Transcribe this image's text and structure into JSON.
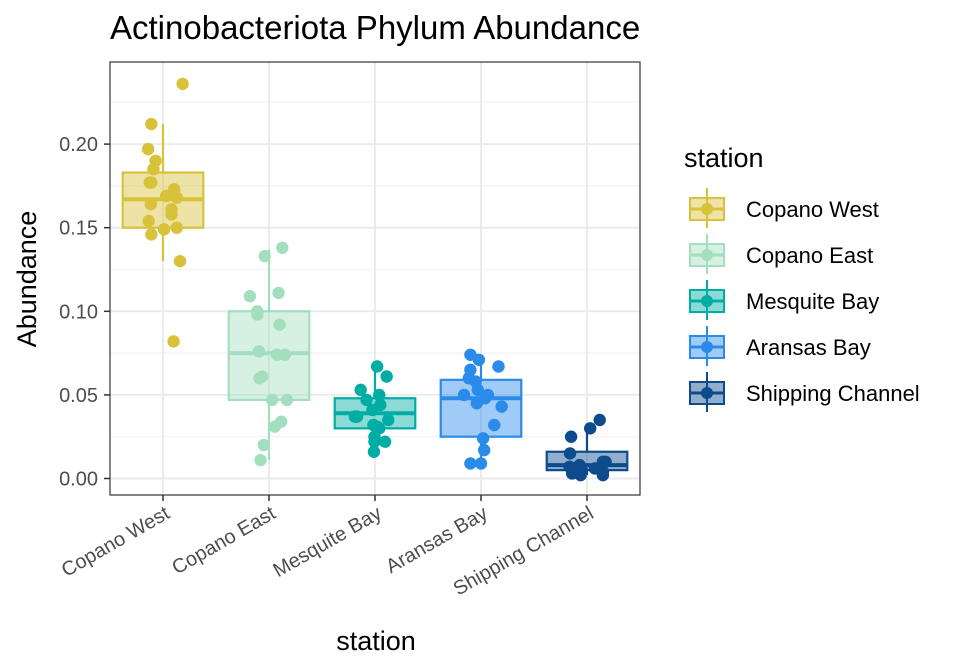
{
  "chart_data": {
    "type": "boxplot",
    "title": "Actinobacteriota Phylum Abundance",
    "xlabel": "station",
    "ylabel": "Abundance",
    "ylim": [
      -0.01,
      0.25
    ],
    "yticks": [
      0.0,
      0.05,
      0.1,
      0.15,
      0.2
    ],
    "ytick_labels": [
      "0.00",
      "0.05",
      "0.10",
      "0.15",
      "0.20"
    ],
    "grid": true,
    "legend": {
      "title": "station",
      "position": "right"
    },
    "categories": [
      "Copano West",
      "Copano East",
      "Mesquite Bay",
      "Aransas Bay",
      "Shipping Channel"
    ],
    "series": [
      {
        "name": "Copano West",
        "color": "#D8C23A",
        "box": {
          "whisker_low": 0.13,
          "q1": 0.15,
          "median": 0.167,
          "q3": 0.183,
          "whisker_high": 0.212
        },
        "points": [
          {
            "x": -0.22,
            "y": 0.212
          },
          {
            "x": 0.37,
            "y": 0.236
          },
          {
            "x": -0.28,
            "y": 0.197
          },
          {
            "x": -0.14,
            "y": 0.19
          },
          {
            "x": -0.18,
            "y": 0.185
          },
          {
            "x": -0.25,
            "y": 0.177
          },
          {
            "x": -0.22,
            "y": 0.177
          },
          {
            "x": 0.21,
            "y": 0.173
          },
          {
            "x": 0.06,
            "y": 0.169
          },
          {
            "x": 0.26,
            "y": 0.168
          },
          {
            "x": -0.23,
            "y": 0.164
          },
          {
            "x": 0.16,
            "y": 0.161
          },
          {
            "x": 0.16,
            "y": 0.158
          },
          {
            "x": -0.27,
            "y": 0.154
          },
          {
            "x": 0.26,
            "y": 0.15
          },
          {
            "x": 0.02,
            "y": 0.149
          },
          {
            "x": -0.22,
            "y": 0.146
          },
          {
            "x": 0.32,
            "y": 0.13
          },
          {
            "x": 0.2,
            "y": 0.082
          }
        ]
      },
      {
        "name": "Copano East",
        "color": "#A3DFBE",
        "box": {
          "whisker_low": 0.011,
          "q1": 0.047,
          "median": 0.075,
          "q3": 0.1,
          "whisker_high": 0.137
        },
        "points": [
          {
            "x": 0.25,
            "y": 0.138
          },
          {
            "x": -0.08,
            "y": 0.133
          },
          {
            "x": 0.18,
            "y": 0.111
          },
          {
            "x": -0.36,
            "y": 0.109
          },
          {
            "x": -0.22,
            "y": 0.1
          },
          {
            "x": -0.22,
            "y": 0.098
          },
          {
            "x": 0.2,
            "y": 0.092
          },
          {
            "x": -0.19,
            "y": 0.076
          },
          {
            "x": 0.15,
            "y": 0.074
          },
          {
            "x": 0.3,
            "y": 0.074
          },
          {
            "x": -0.13,
            "y": 0.061
          },
          {
            "x": -0.18,
            "y": 0.06
          },
          {
            "x": 0.06,
            "y": 0.047
          },
          {
            "x": 0.34,
            "y": 0.047
          },
          {
            "x": 0.23,
            "y": 0.034
          },
          {
            "x": 0.11,
            "y": 0.031
          },
          {
            "x": -0.1,
            "y": 0.02
          },
          {
            "x": -0.16,
            "y": 0.011
          }
        ]
      },
      {
        "name": "Mesquite Bay",
        "color": "#00ADA4",
        "box": {
          "whisker_low": 0.016,
          "q1": 0.03,
          "median": 0.039,
          "q3": 0.048,
          "whisker_high": 0.067
        },
        "points": [
          {
            "x": 0.04,
            "y": 0.067
          },
          {
            "x": 0.22,
            "y": 0.061
          },
          {
            "x": -0.27,
            "y": 0.053
          },
          {
            "x": 0.08,
            "y": 0.05
          },
          {
            "x": -0.16,
            "y": 0.047
          },
          {
            "x": 0.1,
            "y": 0.044
          },
          {
            "x": -0.05,
            "y": 0.041
          },
          {
            "x": -0.34,
            "y": 0.037
          },
          {
            "x": -0.38,
            "y": 0.037
          },
          {
            "x": 0.25,
            "y": 0.035
          },
          {
            "x": -0.03,
            "y": 0.032
          },
          {
            "x": 0.04,
            "y": 0.031
          },
          {
            "x": 0.08,
            "y": 0.03
          },
          {
            "x": -0.01,
            "y": 0.025
          },
          {
            "x": 0.19,
            "y": 0.022
          },
          {
            "x": -0.01,
            "y": 0.022
          },
          {
            "x": -0.02,
            "y": 0.016
          }
        ]
      },
      {
        "name": "Aransas Bay",
        "color": "#2B8BEA",
        "box": {
          "whisker_low": 0.009,
          "q1": 0.025,
          "median": 0.048,
          "q3": 0.059,
          "whisker_high": 0.073
        },
        "points": [
          {
            "x": -0.2,
            "y": 0.074
          },
          {
            "x": -0.04,
            "y": 0.071
          },
          {
            "x": 0.33,
            "y": 0.067
          },
          {
            "x": -0.2,
            "y": 0.065
          },
          {
            "x": -0.23,
            "y": 0.06
          },
          {
            "x": -0.1,
            "y": 0.058
          },
          {
            "x": -0.06,
            "y": 0.053
          },
          {
            "x": 0.13,
            "y": 0.05
          },
          {
            "x": -0.32,
            "y": 0.05
          },
          {
            "x": 0.08,
            "y": 0.048
          },
          {
            "x": -0.08,
            "y": 0.045
          },
          {
            "x": 0.39,
            "y": 0.043
          },
          {
            "x": 0.25,
            "y": 0.032
          },
          {
            "x": 0.04,
            "y": 0.024
          },
          {
            "x": 0.06,
            "y": 0.017
          },
          {
            "x": -0.2,
            "y": 0.009
          },
          {
            "x": 0.0,
            "y": 0.009
          }
        ]
      },
      {
        "name": "Shipping Channel",
        "color": "#0E4B8D",
        "box": {
          "whisker_low": 0.002,
          "q1": 0.005,
          "median": 0.008,
          "q3": 0.016,
          "whisker_high": 0.03
        },
        "points": [
          {
            "x": 0.24,
            "y": 0.035
          },
          {
            "x": 0.06,
            "y": 0.03
          },
          {
            "x": -0.3,
            "y": 0.025
          },
          {
            "x": -0.32,
            "y": 0.015
          },
          {
            "x": 0.35,
            "y": 0.01
          },
          {
            "x": 0.3,
            "y": 0.01
          },
          {
            "x": -0.14,
            "y": 0.008
          },
          {
            "x": -0.33,
            "y": 0.007
          },
          {
            "x": -0.28,
            "y": 0.006
          },
          {
            "x": 0.15,
            "y": 0.006
          },
          {
            "x": -0.1,
            "y": 0.005
          },
          {
            "x": 0.3,
            "y": 0.004
          },
          {
            "x": -0.28,
            "y": 0.003
          },
          {
            "x": -0.12,
            "y": 0.002
          },
          {
            "x": 0.3,
            "y": 0.002
          }
        ]
      }
    ]
  }
}
